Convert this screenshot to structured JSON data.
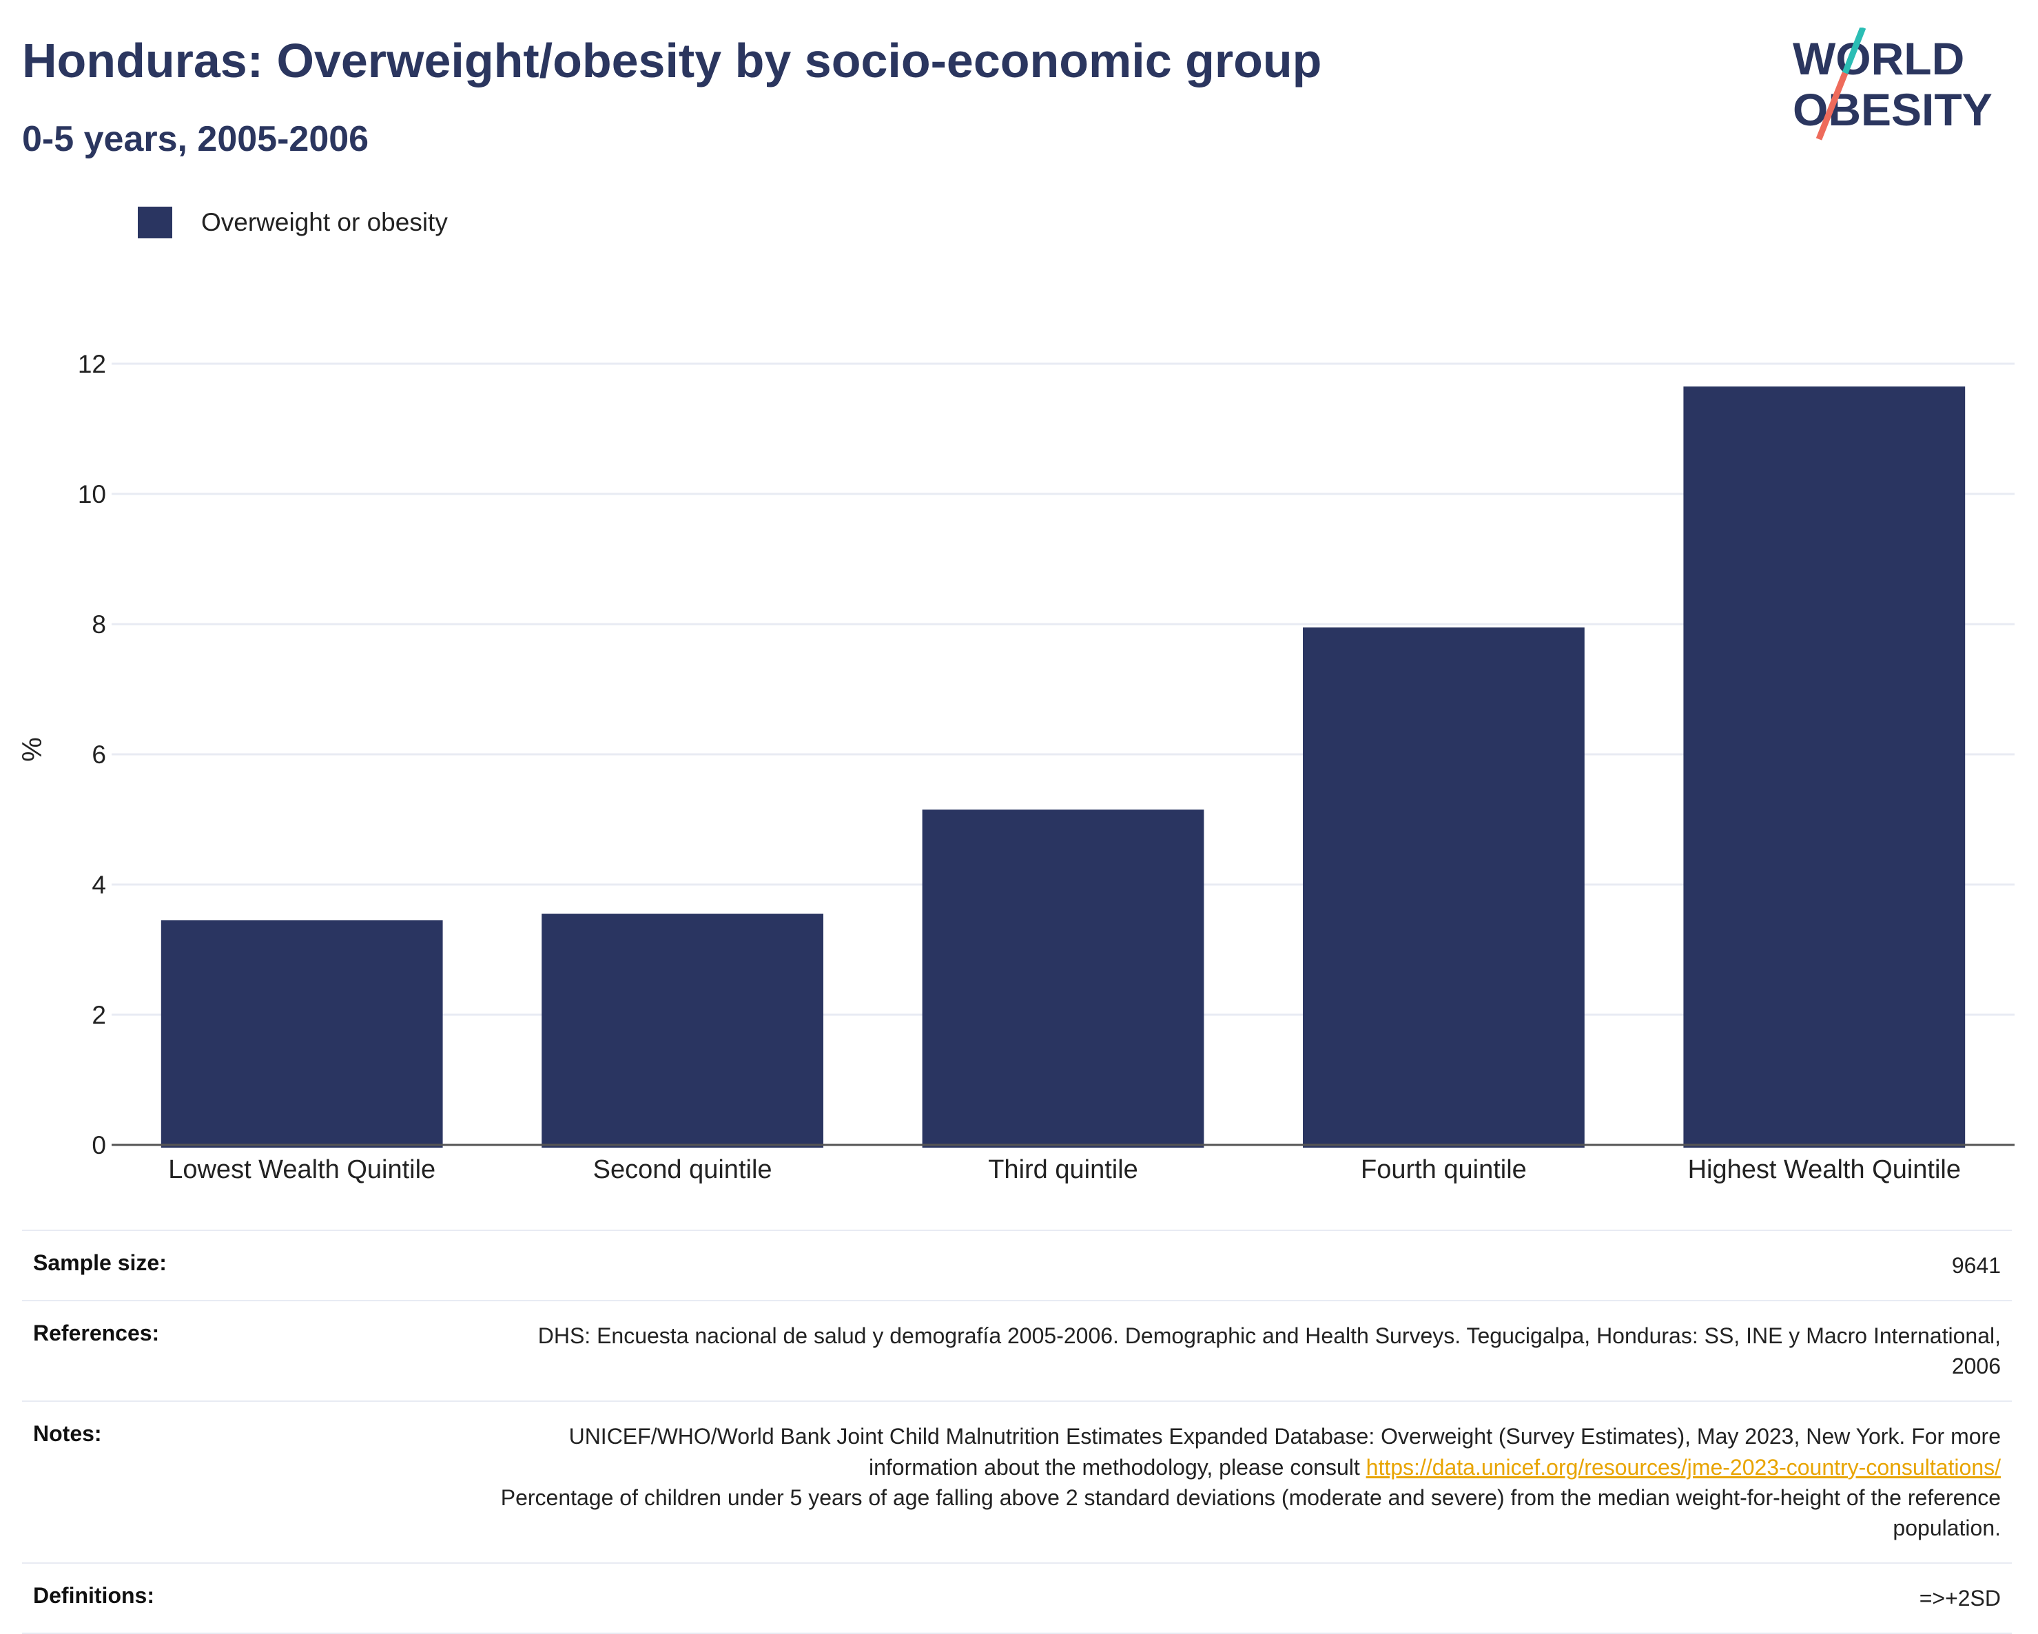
{
  "header": {
    "title": "Honduras: Overweight/obesity by socio-economic group",
    "subtitle": "0-5 years, 2005-2006"
  },
  "logo": {
    "line1": "WORLD",
    "line2": "OBESITY"
  },
  "colors": {
    "bar": "#2a3561",
    "title": "#2b365f",
    "grid": "#e8ebf3",
    "axis": "#555555",
    "link": "#e8a400",
    "logo_teal": "#2bbdb4",
    "logo_coral": "#ee6b5b"
  },
  "chart_data": {
    "type": "bar",
    "categories": [
      "Lowest Wealth Quintile",
      "Second quintile",
      "Third quintile",
      "Fourth quintile",
      "Highest Wealth Quintile"
    ],
    "series": [
      {
        "name": "Overweight or obesity",
        "values": [
          3.45,
          3.55,
          5.15,
          7.95,
          11.65
        ]
      }
    ],
    "ylabel": "%",
    "ylim": [
      0,
      12
    ],
    "yticks": [
      0,
      2,
      4,
      6,
      8,
      10,
      12
    ],
    "grid": true,
    "legend_position": "top-left"
  },
  "footer": {
    "sample_size_label": "Sample size:",
    "sample_size_value": "9641",
    "references_label": "References:",
    "references_value": "DHS: Encuesta nacional de salud y demografía 2005-2006. Demographic and Health Surveys. Tegucigalpa, Honduras: SS, INE y Macro International, 2006",
    "notes_label": "Notes:",
    "notes_text1": "UNICEF/WHO/World Bank Joint Child Malnutrition Estimates Expanded Database: Overweight (Survey Estimates), May 2023, New York. For more information about the methodology, please consult ",
    "notes_link": "https://data.unicef.org/resources/jme-2023-country-consultations/",
    "notes_text2": "Percentage of children under 5 years of age falling above 2 standard deviations (moderate and severe) from the median weight-for-height of the reference population.",
    "definitions_label": "Definitions:",
    "definitions_value": "=>+2SD"
  }
}
